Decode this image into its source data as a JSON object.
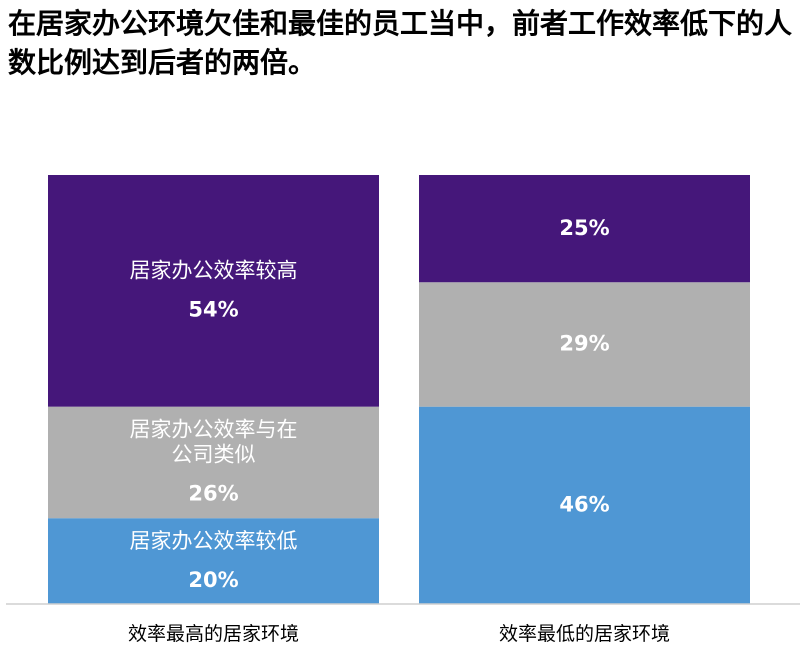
{
  "title": "在居家办公环境欠佳和最佳的员工当中，前者工作效率低下的人数比例达到后者的两倍。",
  "chart_data": {
    "type": "bar",
    "stacked": true,
    "unit": "%",
    "categories": [
      "效率最高的居家环境",
      "效率最低的居家环境"
    ],
    "series": [
      {
        "name": "居家办公效率较低",
        "values": [
          20,
          46
        ],
        "color": "#4f97d4"
      },
      {
        "name": "居家办公效率与在公司类似",
        "values": [
          26,
          29
        ],
        "color": "#b0b0b0"
      },
      {
        "name": "居家办公效率较高",
        "values": [
          54,
          25
        ],
        "color": "#45177a"
      }
    ],
    "segment_labels": {
      "效率最高的居家环境": [
        "居家办公效率较低",
        [
          "居家办公效率与在",
          "公司类似"
        ],
        "居家办公效率较高"
      ],
      "效率最低的居家环境": [
        null,
        null,
        null
      ]
    },
    "ylim": [
      0,
      100
    ],
    "legend": "none",
    "grid": false
  }
}
